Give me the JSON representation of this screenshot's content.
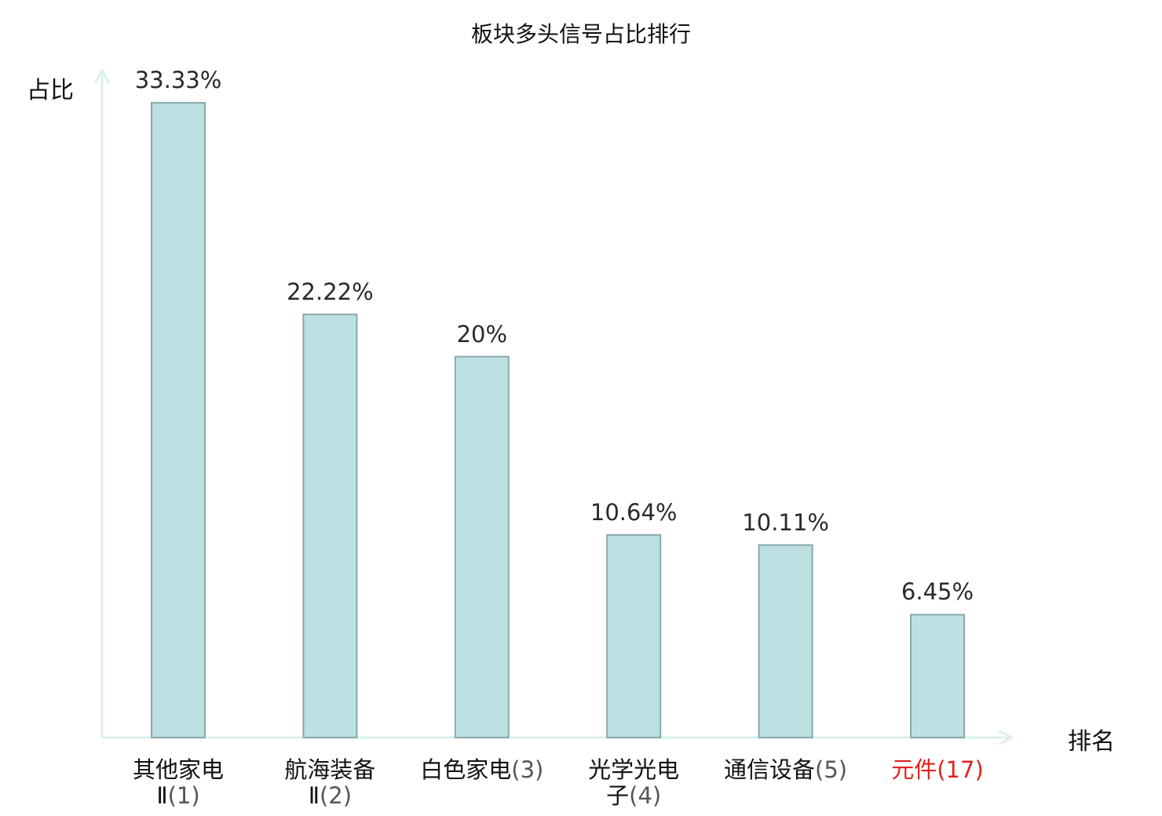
{
  "chart_data": {
    "type": "bar",
    "title": "板块多头信号占比排行",
    "ylabel": "占比",
    "xlabel": "排名",
    "ylim": [
      0,
      35
    ],
    "grid": false,
    "categories": [
      {
        "name_line1": "其他家电",
        "name_line2": "Ⅱ",
        "rank": "(1)",
        "highlight": false
      },
      {
        "name_line1": "航海装备",
        "name_line2": "Ⅱ",
        "rank": "(2)",
        "highlight": false
      },
      {
        "name_line1": "白色家电",
        "name_line2": "",
        "rank": "(3)",
        "highlight": false
      },
      {
        "name_line1": "光学光电",
        "name_line2": "子",
        "rank": "(4)",
        "highlight": false
      },
      {
        "name_line1": "通信设备",
        "name_line2": "",
        "rank": "(5)",
        "highlight": false
      },
      {
        "name_line1": "元件",
        "name_line2": "",
        "rank": "(17)",
        "highlight": true
      }
    ],
    "values": [
      33.33,
      22.22,
      20,
      10.64,
      10.11,
      6.45
    ],
    "value_labels": [
      "33.33%",
      "22.22%",
      "20%",
      "10.64%",
      "10.11%",
      "6.45%"
    ],
    "colors": {
      "bar_fill": "#bde0e3",
      "bar_stroke": "#8aa8ab",
      "axis": "#dcefed",
      "highlight_text": "#e0231d"
    }
  }
}
